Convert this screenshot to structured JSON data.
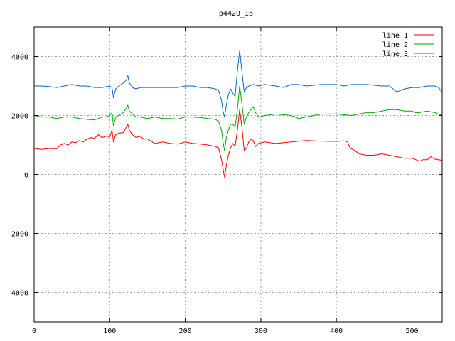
{
  "chart_data": {
    "type": "line",
    "title": "p4420_16",
    "xlabel": "",
    "ylabel": "",
    "xlim": [
      0,
      540
    ],
    "ylim": [
      -5000,
      5000
    ],
    "x_ticks": [
      0,
      100,
      200,
      300,
      400,
      500
    ],
    "y_ticks": [
      -4000,
      -2000,
      0,
      2000,
      4000
    ],
    "grid": true,
    "legend_position": "top-right",
    "series": [
      {
        "name": "line 1",
        "color": "#ff0000",
        "points": [
          [
            0,
            880
          ],
          [
            10,
            850
          ],
          [
            20,
            880
          ],
          [
            30,
            870
          ],
          [
            35,
            1000
          ],
          [
            40,
            1050
          ],
          [
            45,
            1000
          ],
          [
            50,
            1100
          ],
          [
            55,
            1080
          ],
          [
            60,
            1150
          ],
          [
            65,
            1100
          ],
          [
            70,
            1200
          ],
          [
            75,
            1250
          ],
          [
            80,
            1230
          ],
          [
            85,
            1350
          ],
          [
            90,
            1250
          ],
          [
            95,
            1300
          ],
          [
            100,
            1280
          ],
          [
            103,
            1500
          ],
          [
            105,
            1100
          ],
          [
            108,
            1350
          ],
          [
            112,
            1400
          ],
          [
            118,
            1420
          ],
          [
            122,
            1600
          ],
          [
            124,
            1700
          ],
          [
            126,
            1500
          ],
          [
            130,
            1350
          ],
          [
            135,
            1250
          ],
          [
            140,
            1300
          ],
          [
            145,
            1200
          ],
          [
            150,
            1200
          ],
          [
            160,
            1050
          ],
          [
            170,
            1100
          ],
          [
            180,
            1050
          ],
          [
            190,
            1030
          ],
          [
            200,
            1100
          ],
          [
            210,
            1050
          ],
          [
            220,
            1030
          ],
          [
            230,
            1000
          ],
          [
            240,
            950
          ],
          [
            244,
            900
          ],
          [
            248,
            500
          ],
          [
            250,
            200
          ],
          [
            252,
            -100
          ],
          [
            254,
            250
          ],
          [
            257,
            650
          ],
          [
            260,
            900
          ],
          [
            263,
            1050
          ],
          [
            266,
            950
          ],
          [
            269,
            1500
          ],
          [
            272,
            2200
          ],
          [
            275,
            1600
          ],
          [
            278,
            800
          ],
          [
            281,
            900
          ],
          [
            284,
            1100
          ],
          [
            287,
            1200
          ],
          [
            290,
            1150
          ],
          [
            293,
            950
          ],
          [
            297,
            1050
          ],
          [
            305,
            1100
          ],
          [
            320,
            1050
          ],
          [
            340,
            1100
          ],
          [
            360,
            1150
          ],
          [
            380,
            1130
          ],
          [
            400,
            1120
          ],
          [
            410,
            1140
          ],
          [
            415,
            1100
          ],
          [
            418,
            900
          ],
          [
            425,
            800
          ],
          [
            430,
            700
          ],
          [
            440,
            650
          ],
          [
            450,
            650
          ],
          [
            460,
            700
          ],
          [
            470,
            650
          ],
          [
            480,
            600
          ],
          [
            490,
            550
          ],
          [
            500,
            550
          ],
          [
            505,
            500
          ],
          [
            510,
            450
          ],
          [
            515,
            500
          ],
          [
            520,
            500
          ],
          [
            525,
            600
          ],
          [
            530,
            520
          ],
          [
            535,
            500
          ],
          [
            540,
            480
          ]
        ]
      },
      {
        "name": "line 2",
        "color": "#00aa00",
        "points": [
          [
            0,
            2000
          ],
          [
            10,
            1950
          ],
          [
            20,
            1950
          ],
          [
            30,
            1900
          ],
          [
            40,
            1950
          ],
          [
            50,
            1950
          ],
          [
            60,
            1900
          ],
          [
            70,
            1870
          ],
          [
            80,
            1850
          ],
          [
            85,
            1900
          ],
          [
            90,
            1950
          ],
          [
            95,
            1950
          ],
          [
            100,
            2000
          ],
          [
            103,
            2100
          ],
          [
            105,
            1650
          ],
          [
            108,
            1950
          ],
          [
            112,
            2000
          ],
          [
            118,
            2100
          ],
          [
            122,
            2250
          ],
          [
            124,
            2350
          ],
          [
            126,
            2150
          ],
          [
            130,
            2050
          ],
          [
            135,
            1950
          ],
          [
            140,
            1950
          ],
          [
            150,
            1900
          ],
          [
            160,
            1950
          ],
          [
            170,
            1900
          ],
          [
            180,
            1900
          ],
          [
            190,
            1880
          ],
          [
            200,
            1950
          ],
          [
            210,
            1950
          ],
          [
            220,
            1930
          ],
          [
            230,
            1900
          ],
          [
            240,
            1870
          ],
          [
            244,
            1800
          ],
          [
            248,
            1500
          ],
          [
            250,
            1100
          ],
          [
            252,
            800
          ],
          [
            254,
            1200
          ],
          [
            257,
            1500
          ],
          [
            260,
            1700
          ],
          [
            263,
            1700
          ],
          [
            266,
            1600
          ],
          [
            269,
            2200
          ],
          [
            272,
            3000
          ],
          [
            275,
            2400
          ],
          [
            278,
            1700
          ],
          [
            281,
            1950
          ],
          [
            284,
            2100
          ],
          [
            287,
            2200
          ],
          [
            290,
            2300
          ],
          [
            293,
            2100
          ],
          [
            297,
            1950
          ],
          [
            305,
            2000
          ],
          [
            320,
            2050
          ],
          [
            340,
            2000
          ],
          [
            350,
            1900
          ],
          [
            360,
            1950
          ],
          [
            380,
            2050
          ],
          [
            400,
            2050
          ],
          [
            420,
            2000
          ],
          [
            430,
            2050
          ],
          [
            440,
            2100
          ],
          [
            450,
            2100
          ],
          [
            460,
            2150
          ],
          [
            470,
            2200
          ],
          [
            480,
            2200
          ],
          [
            490,
            2150
          ],
          [
            500,
            2150
          ],
          [
            505,
            2100
          ],
          [
            510,
            2100
          ],
          [
            520,
            2150
          ],
          [
            530,
            2100
          ],
          [
            540,
            2000
          ]
        ]
      },
      {
        "name": "line 3",
        "color": "#0066cc",
        "points": [
          [
            0,
            3000
          ],
          [
            10,
            3000
          ],
          [
            20,
            2980
          ],
          [
            30,
            2950
          ],
          [
            40,
            3000
          ],
          [
            50,
            3050
          ],
          [
            60,
            3000
          ],
          [
            70,
            3000
          ],
          [
            80,
            2950
          ],
          [
            90,
            2950
          ],
          [
            100,
            3000
          ],
          [
            103,
            2950
          ],
          [
            105,
            2600
          ],
          [
            108,
            2900
          ],
          [
            112,
            3000
          ],
          [
            118,
            3100
          ],
          [
            122,
            3200
          ],
          [
            124,
            3350
          ],
          [
            126,
            3100
          ],
          [
            130,
            2950
          ],
          [
            135,
            2900
          ],
          [
            140,
            2950
          ],
          [
            150,
            2950
          ],
          [
            160,
            2950
          ],
          [
            170,
            2950
          ],
          [
            180,
            2950
          ],
          [
            190,
            2950
          ],
          [
            200,
            3000
          ],
          [
            210,
            3000
          ],
          [
            220,
            2950
          ],
          [
            230,
            2950
          ],
          [
            240,
            2900
          ],
          [
            244,
            2850
          ],
          [
            248,
            2500
          ],
          [
            250,
            2150
          ],
          [
            252,
            1950
          ],
          [
            254,
            2300
          ],
          [
            257,
            2700
          ],
          [
            260,
            2900
          ],
          [
            263,
            2750
          ],
          [
            266,
            2650
          ],
          [
            269,
            3500
          ],
          [
            272,
            4200
          ],
          [
            275,
            3500
          ],
          [
            278,
            2800
          ],
          [
            281,
            2950
          ],
          [
            284,
            3000
          ],
          [
            290,
            3050
          ],
          [
            297,
            3000
          ],
          [
            305,
            3050
          ],
          [
            320,
            3000
          ],
          [
            330,
            2950
          ],
          [
            340,
            3050
          ],
          [
            350,
            3050
          ],
          [
            360,
            3000
          ],
          [
            380,
            3050
          ],
          [
            400,
            3050
          ],
          [
            410,
            3000
          ],
          [
            420,
            3050
          ],
          [
            440,
            3050
          ],
          [
            460,
            3000
          ],
          [
            470,
            3000
          ],
          [
            475,
            2900
          ],
          [
            480,
            2800
          ],
          [
            485,
            2850
          ],
          [
            490,
            2900
          ],
          [
            500,
            2950
          ],
          [
            510,
            2950
          ],
          [
            520,
            3000
          ],
          [
            530,
            3000
          ],
          [
            535,
            2950
          ],
          [
            540,
            2800
          ]
        ]
      }
    ]
  }
}
